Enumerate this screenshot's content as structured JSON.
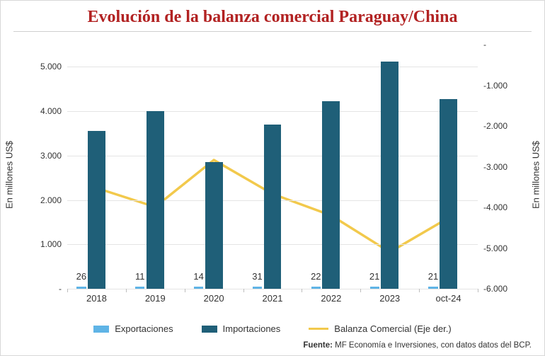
{
  "title": "Evolución de la balanza comercial Paraguay/China",
  "title_color": "#b22222",
  "title_fontsize": 24,
  "background_color": "#ffffff",
  "grid_color": "#e4e4e4",
  "axis_text_color": "#333333",
  "chart": {
    "type": "bar+line",
    "categories": [
      "2018",
      "2019",
      "2020",
      "2021",
      "2022",
      "2023",
      "oct-24"
    ],
    "y_left": {
      "label": "En millones US$",
      "min": 0,
      "max": 5500,
      "ticks": [
        0,
        1000,
        2000,
        3000,
        4000,
        5000
      ],
      "tick_labels": [
        "-",
        "1.000",
        "2.000",
        "3.000",
        "4.000",
        "5.000"
      ]
    },
    "y_right": {
      "label": "En millones US$",
      "min": -6000,
      "max": 0,
      "ticks": [
        -6000,
        -5000,
        -4000,
        -3000,
        -2000,
        -1000,
        0
      ],
      "tick_labels": [
        "-6.000",
        "-5.000",
        "-4.000",
        "-3.000",
        "-2.000",
        "-1.000",
        "-"
      ]
    },
    "series": {
      "exportaciones": {
        "label": "Exportaciones",
        "color": "#5fb4e6",
        "values": [
          26,
          11,
          14,
          31,
          22,
          21,
          21
        ],
        "bar_width_frac": 0.16
      },
      "importaciones": {
        "label": "Importaciones",
        "color": "#1f5f78",
        "values": [
          3550,
          4000,
          2850,
          3700,
          4220,
          5120,
          4280
        ],
        "bar_width_frac": 0.3
      },
      "balanza": {
        "label": "Balanza Comercial (Eje der.)",
        "color": "#f2c94c",
        "values": [
          -3524,
          -3989,
          -2836,
          -3669,
          -4198,
          -5099,
          -4259
        ],
        "line_width": 3.5
      }
    },
    "bar_value_labels": [
      "26",
      "11",
      "14",
      "31",
      "22",
      "21",
      "21"
    ],
    "label_fontsize": 13
  },
  "legend": {
    "items": [
      {
        "key": "exportaciones",
        "label": "Exportaciones",
        "color": "#5fb4e6",
        "kind": "box"
      },
      {
        "key": "importaciones",
        "label": "Importaciones",
        "color": "#1f5f78",
        "kind": "box"
      },
      {
        "key": "balanza",
        "label": "Balanza Comercial (Eje der.)",
        "color": "#f2c94c",
        "kind": "line"
      }
    ]
  },
  "source": {
    "prefix": "Fuente:",
    "text": " MF Economía e Inversiones, con datos datos del BCP."
  }
}
